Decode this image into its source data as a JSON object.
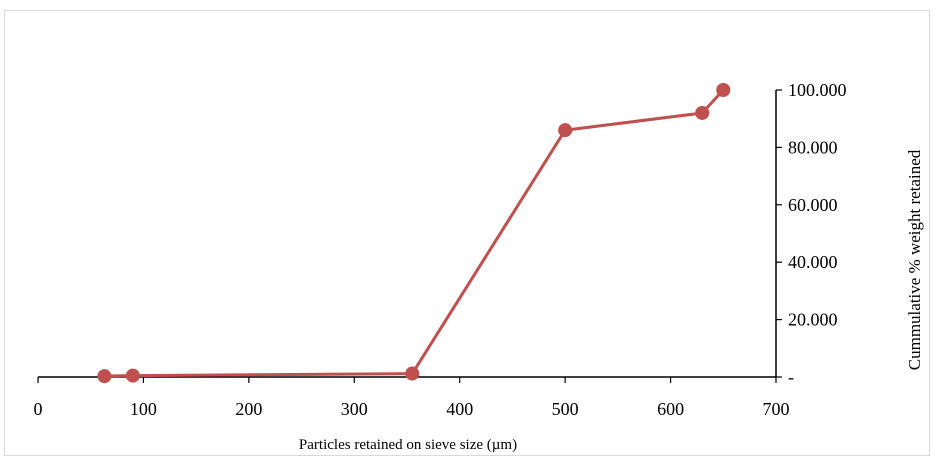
{
  "chart_data": {
    "type": "line",
    "title": "",
    "xlabel": "Particles retained on sieve size (µm)",
    "ylabel": "Cummulative % weight retained",
    "xlim": [
      0,
      700
    ],
    "ylim": [
      0,
      100
    ],
    "x_ticks": [
      0,
      100,
      200,
      300,
      400,
      500,
      600,
      700
    ],
    "x_tick_labels": [
      "0",
      "100",
      "200",
      "300",
      "400",
      "500",
      "600",
      "700"
    ],
    "y_ticks": [
      0,
      20,
      40,
      60,
      80,
      100
    ],
    "y_tick_labels": [
      "-",
      "20.000",
      "40.000",
      "60.000",
      "80.000",
      "100.000"
    ],
    "y_axis_position": "right",
    "grid": false,
    "legend": "none",
    "series": [
      {
        "color": "#C0504D",
        "points": [
          {
            "x": 63,
            "y": 0.3
          },
          {
            "x": 90,
            "y": 0.5
          },
          {
            "x": 355,
            "y": 1.2
          },
          {
            "x": 500,
            "y": 86
          },
          {
            "x": 630,
            "y": 92
          },
          {
            "x": 650,
            "y": 100
          }
        ]
      }
    ]
  }
}
